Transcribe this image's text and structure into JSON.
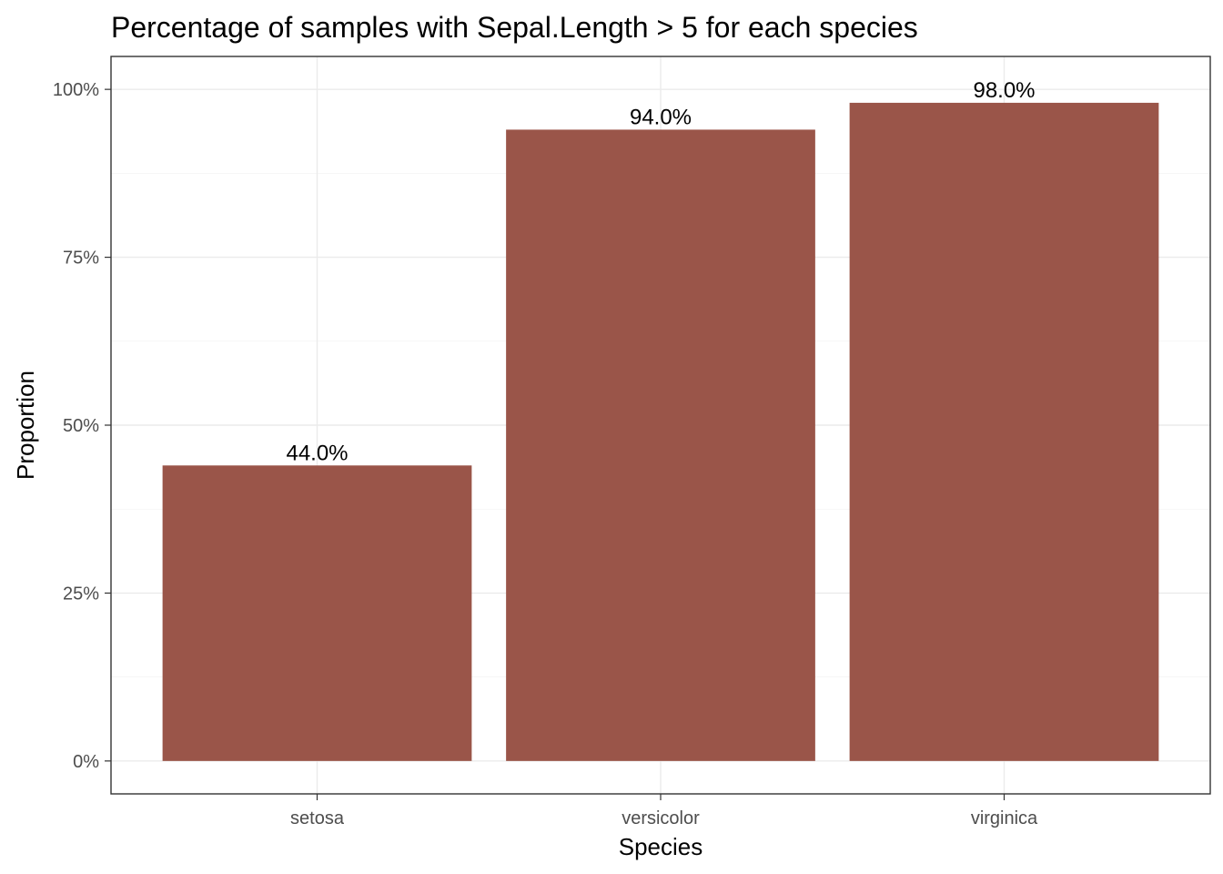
{
  "chart_data": {
    "type": "bar",
    "title": "Percentage of samples with Sepal.Length > 5 for each species",
    "xlabel": "Species",
    "ylabel": "Proportion",
    "categories": [
      "setosa",
      "versicolor",
      "virginica"
    ],
    "values": [
      0.44,
      0.94,
      0.98
    ],
    "data_labels": [
      "44.0%",
      "94.0%",
      "98.0%"
    ],
    "y_ticks": [
      0,
      0.25,
      0.5,
      0.75,
      1.0
    ],
    "y_tick_labels": [
      "0%",
      "25%",
      "50%",
      "75%",
      "100%"
    ],
    "ylim": [
      -0.049,
      1.049
    ],
    "grid": true,
    "legend": "none",
    "bar_color": "#9a5549"
  }
}
